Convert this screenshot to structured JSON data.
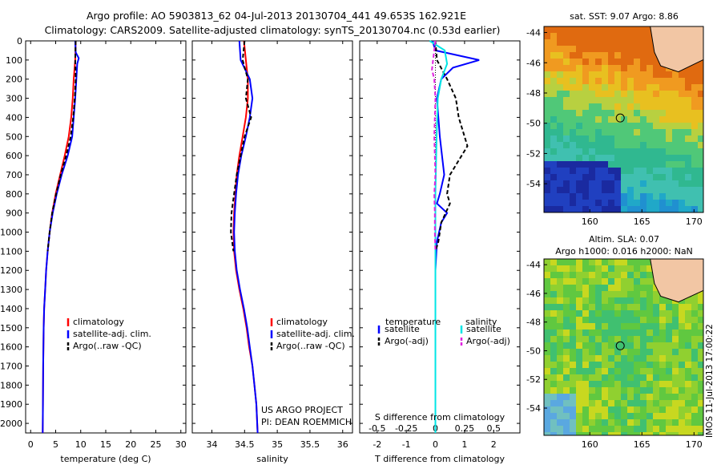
{
  "header": {
    "line1": "Argo profile: AO 5903813_62 04-Jul-2013 20130704_441 49.653S 162.921E",
    "line2": "Climatology: CARS2009. Satellite-adjusted climatology: synTS_20130704.nc (0.53d earlier)"
  },
  "footer": {
    "project": "US ARGO PROJECT",
    "pi": "PI: DEAN ROEMMICH",
    "stamp": "IMOS 11-Jul-2013 17:00:22"
  },
  "maps": {
    "sst_title": "sat. SST: 9.07 Argo: 8.86",
    "sla_title1": "Altim. SLA: 0.07",
    "sla_title2": "Argo h1000: 0.016 h2000: NaN",
    "lat_ticks": [
      "-44",
      "-46",
      "-48",
      "-50",
      "-52",
      "-54"
    ],
    "lon_ticks": [
      "160",
      "165",
      "170"
    ],
    "float_lon": 162.921,
    "float_lat": -49.653,
    "land_color": "#f2c6a4"
  },
  "colors": {
    "climatology": "#ff0000",
    "satellite": "#0000ff",
    "argo": "#000000",
    "sat_salinity": "#00e5e5",
    "argo_salinity": "#e020e0"
  },
  "chart_data": [
    {
      "type": "line",
      "xlabel": "temperature (deg C)",
      "ylabel": "",
      "xlim": [
        -1,
        31
      ],
      "ylim": [
        2050,
        0
      ],
      "xticks": [
        0,
        5,
        10,
        15,
        20,
        25,
        30
      ],
      "yticks": [
        0,
        100,
        200,
        300,
        400,
        500,
        600,
        700,
        800,
        900,
        1000,
        1100,
        1200,
        1300,
        1400,
        1500,
        1600,
        1700,
        1800,
        1900,
        2000
      ],
      "legend": [
        "climatology",
        "satellite-adj. clim.",
        "Argo(..raw -QC)"
      ],
      "series": [
        {
          "name": "climatology",
          "x": [
            9.0,
            8.9,
            8.6,
            8.4,
            8.1,
            7.6,
            6.8,
            5.9,
            5.0,
            4.3,
            3.8,
            3.4,
            3.1,
            2.9,
            2.7,
            2.6,
            2.5,
            2.45,
            2.4
          ],
          "y": [
            0,
            100,
            200,
            300,
            400,
            500,
            600,
            700,
            800,
            900,
            1000,
            1100,
            1200,
            1300,
            1400,
            1500,
            1700,
            1900,
            2050
          ]
        },
        {
          "name": "satellite-adj. clim.",
          "x": [
            8.9,
            9.0,
            9.6,
            9.3,
            8.9,
            8.3,
            7.4,
            6.2,
            5.2,
            4.4,
            3.8,
            3.4,
            3.1,
            2.9,
            2.7,
            2.6,
            2.5,
            2.45,
            2.4
          ],
          "y": [
            0,
            60,
            90,
            120,
            300,
            500,
            600,
            700,
            800,
            900,
            1000,
            1100,
            1200,
            1300,
            1400,
            1500,
            1700,
            1900,
            2050
          ]
        },
        {
          "name": "Argo(..raw -QC)",
          "x": [
            9.0,
            8.9,
            9.0,
            8.8,
            8.5,
            8.0,
            7.1,
            6.0,
            5.1,
            4.3,
            3.8,
            3.4
          ],
          "y": [
            0,
            100,
            200,
            300,
            400,
            500,
            600,
            700,
            800,
            900,
            1000,
            1100
          ]
        }
      ]
    },
    {
      "type": "line",
      "xlabel": "salinity",
      "xlim": [
        33.7,
        36.15
      ],
      "ylim": [
        2050,
        0
      ],
      "xticks": [
        34,
        34.5,
        35,
        35.5,
        36
      ],
      "legend": [
        "climatology",
        "satellite-adj. clim.",
        "Argo(..raw -QC)"
      ],
      "series": [
        {
          "name": "climatology",
          "x": [
            34.49,
            34.52,
            34.55,
            34.55,
            34.52,
            34.47,
            34.42,
            34.38,
            34.36,
            34.34,
            34.33,
            34.34,
            34.37,
            34.42,
            34.48,
            34.53,
            34.57,
            34.62,
            34.65,
            34.68,
            34.7
          ],
          "y": [
            0,
            100,
            200,
            300,
            400,
            500,
            600,
            700,
            800,
            900,
            1000,
            1100,
            1200,
            1300,
            1400,
            1500,
            1600,
            1700,
            1800,
            1900,
            2050
          ]
        },
        {
          "name": "satellite-adj. clim.",
          "x": [
            34.42,
            34.44,
            34.58,
            34.62,
            34.58,
            34.52,
            34.45,
            34.4,
            34.37,
            34.35,
            34.34,
            34.35,
            34.38,
            34.43,
            34.49,
            34.54,
            34.58,
            34.62,
            34.65,
            34.68,
            34.7
          ],
          "y": [
            0,
            100,
            200,
            300,
            400,
            500,
            600,
            700,
            800,
            900,
            1000,
            1100,
            1200,
            1300,
            1400,
            1500,
            1600,
            1700,
            1800,
            1900,
            2050
          ]
        },
        {
          "name": "Argo(..raw -QC)",
          "x": [
            34.5,
            34.47,
            34.55,
            34.52,
            34.6,
            34.5,
            34.44,
            34.38,
            34.34,
            34.3,
            34.29,
            34.33
          ],
          "y": [
            0,
            100,
            200,
            300,
            400,
            500,
            600,
            700,
            800,
            900,
            1000,
            1100
          ]
        }
      ]
    },
    {
      "type": "line",
      "xlabel": "T difference from climatology",
      "x2label": "S difference from climatology",
      "xlim": [
        -2.6,
        2.9
      ],
      "x2lim": [
        -0.65,
        0.725
      ],
      "ylim": [
        2050,
        0
      ],
      "xticks": [
        -2,
        -1,
        0,
        1,
        2
      ],
      "x2ticks": [
        "-0.5",
        "-0.25",
        "0",
        "0.25",
        "0.5"
      ],
      "legend_groups": [
        "temperature",
        "salinity"
      ],
      "legend": [
        "satellite",
        "Argo(-adj)",
        "satellite",
        "Argo(-adj)"
      ],
      "series": [
        {
          "name": "satellite",
          "group": "temperature",
          "x": [
            -0.1,
            0.0,
            1.5,
            0.6,
            0.2,
            0.05,
            0.15,
            0.3,
            0.15,
            0.05,
            0.4,
            0.2,
            0.05,
            0.0,
            0.0,
            0.0,
            0.0
          ],
          "y": [
            0,
            50,
            100,
            140,
            200,
            300,
            500,
            700,
            800,
            850,
            900,
            950,
            1050,
            1200,
            1500,
            1800,
            2050
          ]
        },
        {
          "name": "Argo(-adj)",
          "group": "temperature",
          "x": [
            0.0,
            0.05,
            0.4,
            0.7,
            0.8,
            1.1,
            0.5,
            0.4,
            0.5,
            0.2,
            0.1,
            0.0
          ],
          "y": [
            0,
            100,
            200,
            300,
            400,
            550,
            700,
            800,
            850,
            950,
            1050,
            1100
          ]
        },
        {
          "name": "satellite",
          "group": "salinity",
          "x": [
            -0.05,
            0.08,
            0.1,
            0.05,
            0.02,
            0.01,
            0.0,
            0.0,
            0.0,
            0.0
          ],
          "y": [
            0,
            50,
            120,
            200,
            300,
            500,
            800,
            1200,
            1600,
            2050
          ]
        },
        {
          "name": "Argo(-adj)",
          "group": "salinity",
          "x": [
            0.0,
            -0.02,
            -0.03,
            -0.01,
            0.0,
            -0.01,
            0.0,
            -0.01,
            -0.005,
            -0.005,
            0.0,
            0.0
          ],
          "y": [
            0,
            100,
            150,
            200,
            300,
            500,
            700,
            800,
            900,
            1000,
            1100,
            1100
          ]
        }
      ]
    }
  ]
}
